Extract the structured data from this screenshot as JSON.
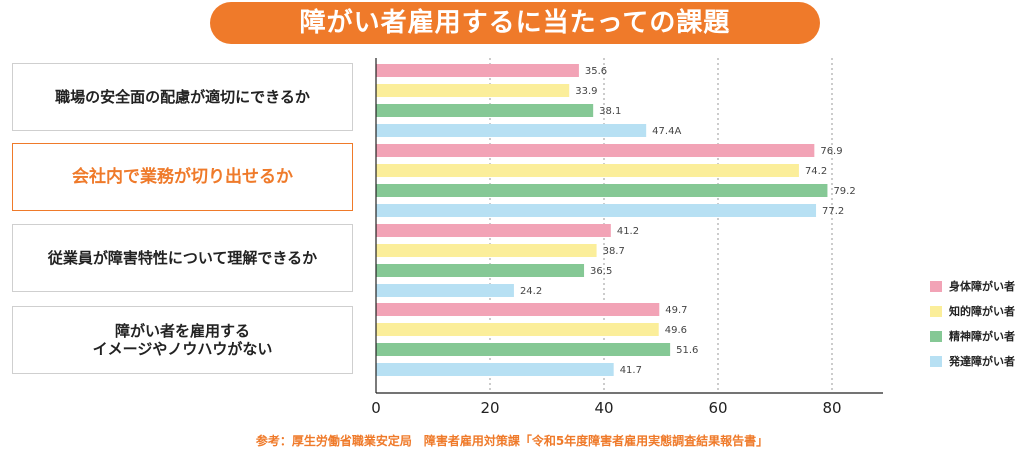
{
  "title": "障がい者雇用するに当たっての課題",
  "categories": [
    {
      "label": "職場の安全面の配慮が適切にできるか",
      "highlight": false
    },
    {
      "label": "会社内で業務が切り出せるか",
      "highlight": true
    },
    {
      "label": "従業員が障害特性について理解できるか",
      "highlight": false
    },
    {
      "label": "障がい者を雇用する\nイメージやノウハウがない",
      "highlight": false
    }
  ],
  "legend": [
    {
      "name": "身体障がい者",
      "color": "#f2a3b6"
    },
    {
      "name": "知的障がい者",
      "color": "#fbee9a"
    },
    {
      "name": "精神障がい者",
      "color": "#85c895"
    },
    {
      "name": "発達障がい者",
      "color": "#b7e0f3"
    }
  ],
  "source": "参考：厚生労働省職業安定局　障害者雇用対策課「令和5年度障害者雇用実態調査結果報告書」",
  "chart_data": {
    "type": "bar",
    "orientation": "horizontal",
    "categories": [
      "職場の安全面の配慮が適切にできるか",
      "会社内で業務が切り出せるか",
      "従業員が障害特性について理解できるか",
      "障がい者を雇用する イメージやノウハウがない"
    ],
    "series": [
      {
        "name": "身体障がい者",
        "values": [
          35.6,
          76.9,
          41.2,
          49.7
        ],
        "labels": [
          "35.6",
          "76.9",
          "41.2",
          "49.7"
        ]
      },
      {
        "name": "知的障がい者",
        "values": [
          33.9,
          74.2,
          38.7,
          49.6
        ],
        "labels": [
          "33.9",
          "74.2",
          "38.7",
          "49.6"
        ]
      },
      {
        "name": "精神障がい者",
        "values": [
          38.1,
          79.2,
          36.5,
          51.6
        ],
        "labels": [
          "38.1",
          "79.2",
          "36.5",
          "51.6"
        ]
      },
      {
        "name": "発達障がい者",
        "values": [
          47.4,
          77.2,
          24.2,
          41.7
        ],
        "labels": [
          "47.4A",
          "77.2",
          "24.2",
          "41.7"
        ]
      }
    ],
    "xlim": [
      0,
      90
    ],
    "ticks": [
      0,
      20,
      40,
      60,
      80
    ],
    "grid": true,
    "legend_position": "right"
  }
}
